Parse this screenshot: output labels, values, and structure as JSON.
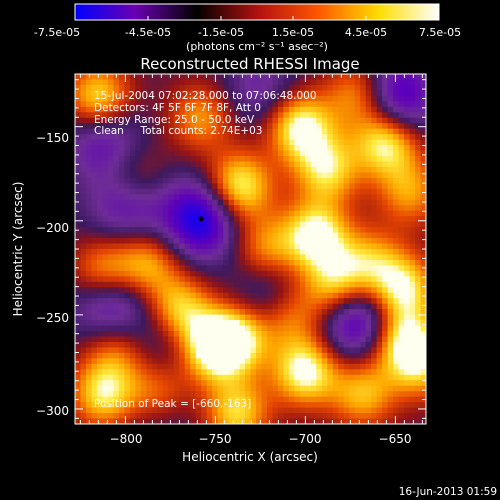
{
  "colorbar": {
    "tick_labels": [
      "-7.5e-05",
      "-4.5e-05",
      "-1.5e-05",
      "1.5e-05",
      "4.5e-05",
      "7.5e-05"
    ],
    "range": [
      -7.5e-05,
      7.5e-05
    ],
    "unit_label": "(photons cm⁻² s⁻¹ asec⁻²)",
    "colors": [
      "#0000ff",
      "#6a00b0",
      "#000000",
      "#b01010",
      "#ff5500",
      "#ffdd00",
      "#ffffff"
    ]
  },
  "annotations": {
    "time_range": "15-Jul-2004 07:02:28.000 to 07:06:48.000",
    "detectors": "Detectors: 4F 5F 6F 7F 8F, Att 0",
    "energy_range": "Energy Range: 25.0 - 50.0 keV",
    "clean_counts": "Clean     Total counts: 2.74E+03",
    "peak_position": "Position of Peak = [-660,-163]"
  },
  "footer_timestamp": "16-Jun-2013 01:59",
  "chart_data": {
    "type": "heatmap",
    "title": "Reconstructed RHESSI Image",
    "xlabel": "Heliocentric X (arcsec)",
    "ylabel": "Heliocentric Y (arcsec)",
    "xlim": [
      -828,
      -633
    ],
    "ylim": [
      -308,
      -122
    ],
    "x_ticks": [
      -800,
      -750,
      -700,
      -650
    ],
    "y_ticks": [
      -150,
      -200,
      -250,
      -300
    ],
    "x_tick_labels": [
      "−800",
      "−750",
      "−700",
      "−650"
    ],
    "y_tick_labels": [
      "−150",
      "−200",
      "−250",
      "−300"
    ],
    "marker_point": [
      -758,
      -199
    ],
    "hot_spots": [
      {
        "x": -815,
        "y": -135,
        "v": 0.9
      },
      {
        "x": -795,
        "y": -178,
        "v": 0.55
      },
      {
        "x": -758,
        "y": -145,
        "v": 0.6
      },
      {
        "x": -737,
        "y": -182,
        "v": 1.0
      },
      {
        "x": -703,
        "y": -150,
        "v": 1.0
      },
      {
        "x": -688,
        "y": -173,
        "v": 0.8
      },
      {
        "x": -670,
        "y": -133,
        "v": 0.7
      },
      {
        "x": -655,
        "y": -158,
        "v": 1.0
      },
      {
        "x": -642,
        "y": -185,
        "v": 0.6
      },
      {
        "x": -788,
        "y": -223,
        "v": 0.7
      },
      {
        "x": -812,
        "y": -228,
        "v": 0.8
      },
      {
        "x": -722,
        "y": -215,
        "v": 0.6
      },
      {
        "x": -694,
        "y": -208,
        "v": 1.0
      },
      {
        "x": -683,
        "y": -235,
        "v": 0.85
      },
      {
        "x": -664,
        "y": -222,
        "v": 0.6
      },
      {
        "x": -646,
        "y": -236,
        "v": 0.9
      },
      {
        "x": -770,
        "y": -248,
        "v": 0.9
      },
      {
        "x": -737,
        "y": -262,
        "v": 0.85
      },
      {
        "x": -752,
        "y": -268,
        "v": 1.0
      },
      {
        "x": -708,
        "y": -250,
        "v": 0.6
      },
      {
        "x": -700,
        "y": -280,
        "v": 1.0
      },
      {
        "x": -668,
        "y": -292,
        "v": 0.7
      },
      {
        "x": -645,
        "y": -264,
        "v": 0.9
      },
      {
        "x": -805,
        "y": -268,
        "v": 0.5
      },
      {
        "x": -812,
        "y": -292,
        "v": 0.85
      },
      {
        "x": -782,
        "y": -292,
        "v": 0.7
      },
      {
        "x": -738,
        "y": -302,
        "v": 0.8
      },
      {
        "x": -635,
        "y": -278,
        "v": 0.6
      }
    ],
    "cold_spots": [
      {
        "x": -758,
        "y": -199,
        "v": 1.0
      },
      {
        "x": -798,
        "y": -190,
        "v": 0.7
      },
      {
        "x": -812,
        "y": -157,
        "v": 0.6
      },
      {
        "x": -650,
        "y": -135,
        "v": 0.9
      },
      {
        "x": -725,
        "y": -130,
        "v": 0.4
      },
      {
        "x": -808,
        "y": -243,
        "v": 0.8
      },
      {
        "x": -776,
        "y": -262,
        "v": 0.4
      },
      {
        "x": -672,
        "y": -252,
        "v": 0.9
      },
      {
        "x": -720,
        "y": -240,
        "v": 0.45
      },
      {
        "x": -782,
        "y": -300,
        "v": 0.35
      }
    ]
  }
}
